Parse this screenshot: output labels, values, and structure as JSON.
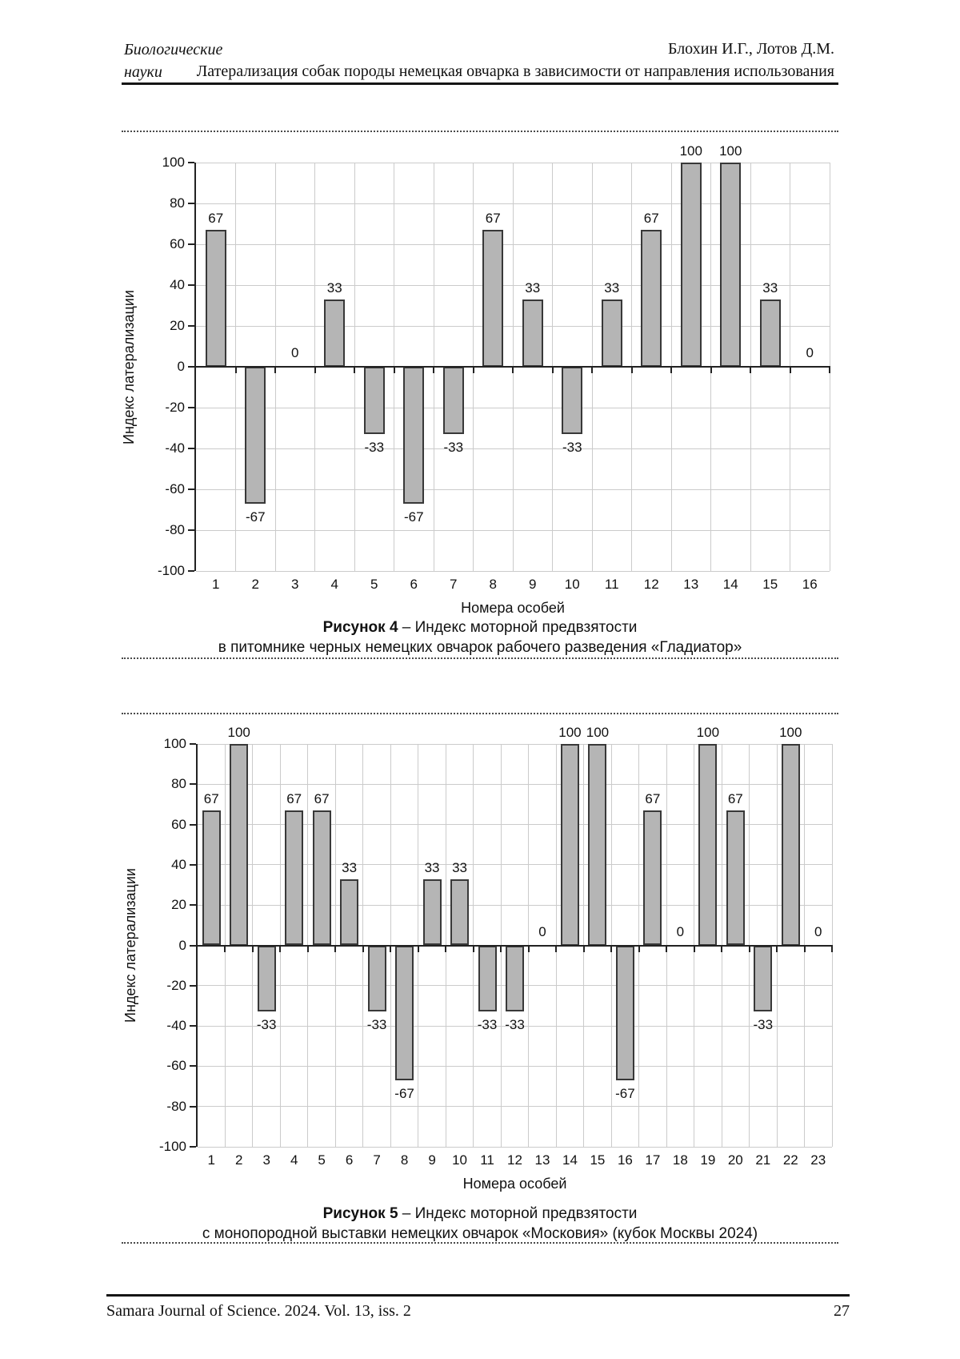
{
  "header": {
    "rubric_line1": "Биологические",
    "rubric_line2": "науки",
    "authors": "Блохин И.Г., Лотов Д.М.",
    "article_title": "Латерализация собак породы немецкая овчарка в зависимости от направления использования"
  },
  "footer": {
    "journal_line": "Samara Journal of Science. 2024. Vol. 13, iss. 2",
    "page_number": "27"
  },
  "chart_data": [
    {
      "type": "bar",
      "categories": [
        "1",
        "2",
        "3",
        "4",
        "5",
        "6",
        "7",
        "8",
        "9",
        "10",
        "11",
        "12",
        "13",
        "14",
        "15",
        "16"
      ],
      "values": [
        67,
        -67,
        0,
        33,
        -33,
        -67,
        -33,
        67,
        33,
        -33,
        33,
        67,
        100,
        100,
        33,
        0
      ],
      "xlabel": "Номера особей",
      "ylabel": "Индекс латерализации",
      "ylim": [
        -100,
        100
      ],
      "ytick_step": 20,
      "grid": true,
      "legend": "none",
      "bar_color": "#b5b5b5",
      "bar_border_color": "#383838",
      "caption": {
        "label": "Рисунок 4",
        "rest": " – Индекс моторной предвзятости",
        "line2": "в питомнике черных немецких овчарок рабочего разведения «Гладиатор»"
      }
    },
    {
      "type": "bar",
      "categories": [
        "1",
        "2",
        "3",
        "4",
        "5",
        "6",
        "7",
        "8",
        "9",
        "10",
        "11",
        "12",
        "13",
        "14",
        "15",
        "16",
        "17",
        "18",
        "19",
        "20",
        "21",
        "22",
        "23"
      ],
      "values": [
        67,
        100,
        -33,
        67,
        67,
        33,
        -33,
        -67,
        33,
        33,
        -33,
        -33,
        0,
        100,
        100,
        -67,
        67,
        0,
        100,
        67,
        -33,
        100,
        0
      ],
      "xlabel": "Номера особей",
      "ylabel": "Индекс латерализации",
      "ylim": [
        -100,
        100
      ],
      "ytick_step": 20,
      "grid": true,
      "legend": "none",
      "bar_color": "#b5b5b5",
      "bar_border_color": "#383838",
      "caption": {
        "label": "Рисунок 5",
        "rest": " – Индекс моторной предвзятости",
        "line2": "с монопородной выставки немецких овчарок «Московия» (кубок Москвы 2024)"
      }
    }
  ]
}
